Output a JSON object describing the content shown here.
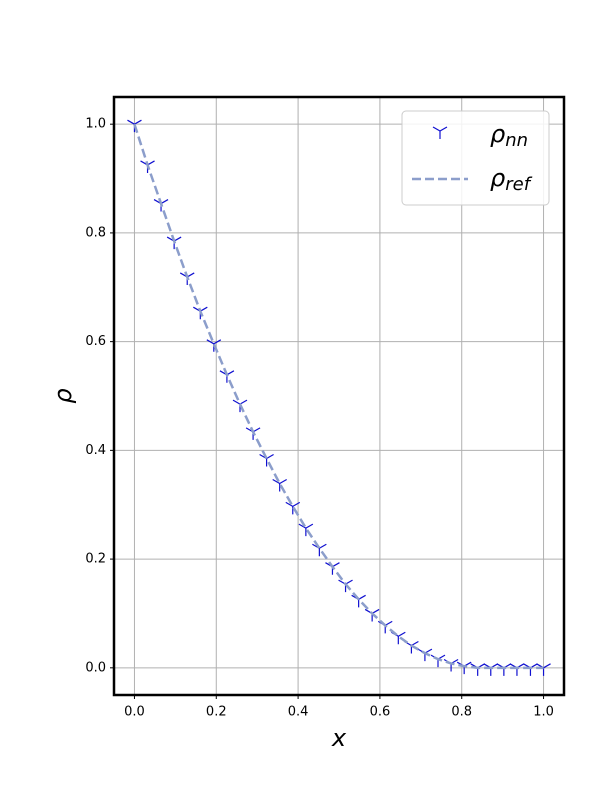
{
  "chart_data": {
    "type": "line",
    "xlabel": "x",
    "ylabel": "ρ",
    "xlim": [
      -0.05,
      1.05
    ],
    "ylim": [
      -0.05,
      1.05
    ],
    "xticks": [
      {
        "value": 0,
        "label": "0.0"
      },
      0.2,
      0.4,
      0.6,
      0.8,
      {
        "value": 1,
        "label": "1.0"
      }
    ],
    "yticks": [
      {
        "value": 0,
        "label": "0.0"
      },
      0.2,
      0.4,
      0.6,
      0.8,
      {
        "value": 1,
        "label": "1.0"
      }
    ],
    "grid": true,
    "legend": "upper right",
    "series": [
      {
        "name": "ρ",
        "name_subscript": "nn",
        "style": "markers",
        "color": "#1010d0",
        "x": [
          0,
          0.032,
          0.065,
          0.097,
          0.129,
          0.161,
          0.194,
          0.226,
          0.258,
          0.29,
          0.323,
          0.355,
          0.387,
          0.419,
          0.452,
          0.484,
          0.516,
          0.548,
          0.581,
          0.613,
          0.645,
          0.677,
          0.71,
          0.742,
          0.774,
          0.806,
          0.839,
          0.871,
          0.903,
          0.935,
          0.968,
          1
        ],
        "values": [
          1,
          0.925,
          0.854,
          0.785,
          0.719,
          0.656,
          0.596,
          0.539,
          0.485,
          0.434,
          0.385,
          0.339,
          0.297,
          0.257,
          0.22,
          0.186,
          0.154,
          0.126,
          0.1,
          0.078,
          0.058,
          0.041,
          0.027,
          0.016,
          0.008,
          0.003,
          0,
          0,
          0,
          0,
          0,
          0
        ]
      },
      {
        "name": "ρ",
        "name_subscript": "ref",
        "style": "dashed",
        "color": "#8c9ecb",
        "x": [
          0,
          0.032,
          0.065,
          0.097,
          0.129,
          0.161,
          0.194,
          0.226,
          0.258,
          0.29,
          0.323,
          0.355,
          0.387,
          0.419,
          0.452,
          0.484,
          0.516,
          0.548,
          0.581,
          0.613,
          0.645,
          0.677,
          0.71,
          0.742,
          0.774,
          0.806,
          0.839,
          0.871,
          0.903,
          0.935,
          0.968,
          1
        ],
        "values": [
          1,
          0.925,
          0.854,
          0.785,
          0.719,
          0.656,
          0.596,
          0.539,
          0.485,
          0.434,
          0.385,
          0.339,
          0.297,
          0.257,
          0.22,
          0.186,
          0.154,
          0.126,
          0.1,
          0.078,
          0.058,
          0.041,
          0.027,
          0.016,
          0.008,
          0.003,
          0,
          0,
          0,
          0,
          0,
          0
        ]
      }
    ]
  }
}
